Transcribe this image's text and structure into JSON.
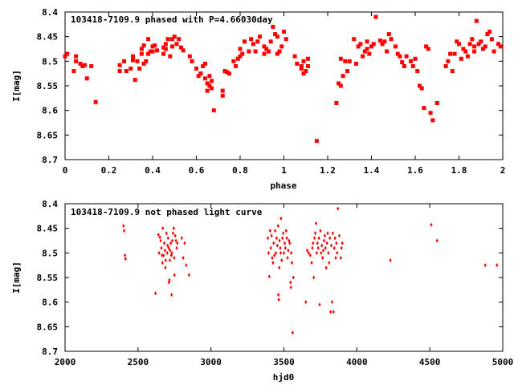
{
  "chart_data": [
    {
      "type": "scatter",
      "title": "103418-7109.9 phased with P=4.66030day",
      "xlabel": "phase",
      "ylabel": "I[mag]",
      "xlim": [
        0,
        2
      ],
      "ylim": [
        8.7,
        8.4
      ],
      "y_inverted": true,
      "xticks": [
        "0",
        "0.2",
        "0.4",
        "0.6",
        "0.8",
        "1",
        "1.2",
        "1.4",
        "1.6",
        "1.8",
        "2"
      ],
      "yticks": [
        "8.4",
        "8.45",
        "8.5",
        "8.55",
        "8.6",
        "8.65",
        "8.7"
      ],
      "marker_color": "#ff0000",
      "grid": false,
      "points": [
        [
          0.0,
          8.49
        ],
        [
          0.01,
          8.485
        ],
        [
          0.04,
          8.52
        ],
        [
          0.05,
          8.5
        ],
        [
          0.05,
          8.49
        ],
        [
          0.07,
          8.505
        ],
        [
          0.08,
          8.51
        ],
        [
          0.09,
          8.508
        ],
        [
          0.1,
          8.535
        ],
        [
          0.12,
          8.51
        ],
        [
          0.14,
          8.583
        ],
        [
          0.25,
          8.52
        ],
        [
          0.25,
          8.508
        ],
        [
          0.27,
          8.5
        ],
        [
          0.28,
          8.52
        ],
        [
          0.3,
          8.515
        ],
        [
          0.31,
          8.49
        ],
        [
          0.31,
          8.498
        ],
        [
          0.32,
          8.538
        ],
        [
          0.33,
          8.5
        ],
        [
          0.34,
          8.515
        ],
        [
          0.35,
          8.485
        ],
        [
          0.35,
          8.475
        ],
        [
          0.36,
          8.468
        ],
        [
          0.36,
          8.505
        ],
        [
          0.37,
          8.5
        ],
        [
          0.38,
          8.485
        ],
        [
          0.38,
          8.455
        ],
        [
          0.39,
          8.48
        ],
        [
          0.4,
          8.48
        ],
        [
          0.4,
          8.47
        ],
        [
          0.41,
          8.468
        ],
        [
          0.42,
          8.478
        ],
        [
          0.45,
          8.485
        ],
        [
          0.45,
          8.472
        ],
        [
          0.46,
          8.465
        ],
        [
          0.46,
          8.475
        ],
        [
          0.47,
          8.455
        ],
        [
          0.48,
          8.49
        ],
        [
          0.49,
          8.47
        ],
        [
          0.49,
          8.455
        ],
        [
          0.5,
          8.45
        ],
        [
          0.51,
          8.465
        ],
        [
          0.52,
          8.455
        ],
        [
          0.53,
          8.472
        ],
        [
          0.54,
          8.478
        ],
        [
          0.57,
          8.49
        ],
        [
          0.58,
          8.5
        ],
        [
          0.6,
          8.515
        ],
        [
          0.61,
          8.53
        ],
        [
          0.62,
          8.525
        ],
        [
          0.63,
          8.51
        ],
        [
          0.64,
          8.505
        ],
        [
          0.64,
          8.535
        ],
        [
          0.65,
          8.545
        ],
        [
          0.65,
          8.56
        ],
        [
          0.66,
          8.55
        ],
        [
          0.66,
          8.53
        ],
        [
          0.67,
          8.54
        ],
        [
          0.67,
          8.555
        ],
        [
          0.68,
          8.6
        ],
        [
          0.72,
          8.56
        ],
        [
          0.72,
          8.57
        ],
        [
          0.73,
          8.52
        ],
        [
          0.74,
          8.522
        ],
        [
          0.75,
          8.525
        ],
        [
          0.77,
          8.5
        ],
        [
          0.78,
          8.51
        ],
        [
          0.79,
          8.495
        ],
        [
          0.8,
          8.49
        ],
        [
          0.8,
          8.475
        ],
        [
          0.81,
          8.485
        ],
        [
          0.82,
          8.46
        ],
        [
          0.84,
          8.48
        ],
        [
          0.85,
          8.455
        ],
        [
          0.86,
          8.465
        ],
        [
          0.87,
          8.48
        ],
        [
          0.88,
          8.46
        ],
        [
          0.89,
          8.45
        ],
        [
          0.91,
          8.47
        ],
        [
          0.91,
          8.485
        ],
        [
          0.92,
          8.475
        ],
        [
          0.93,
          8.48
        ],
        [
          0.94,
          8.46
        ],
        [
          0.95,
          8.43
        ],
        [
          0.96,
          8.445
        ],
        [
          0.97,
          8.45
        ],
        [
          0.97,
          8.485
        ],
        [
          0.98,
          8.48
        ],
        [
          0.99,
          8.47
        ],
        [
          1.0,
          8.44
        ],
        [
          1.01,
          8.455
        ],
        [
          1.05,
          8.49
        ],
        [
          1.06,
          8.505
        ],
        [
          1.08,
          8.51
        ],
        [
          1.08,
          8.515
        ],
        [
          1.09,
          8.525
        ],
        [
          1.09,
          8.5
        ],
        [
          1.1,
          8.52
        ],
        [
          1.11,
          8.495
        ],
        [
          1.11,
          8.51
        ],
        [
          1.15,
          8.662
        ],
        [
          1.24,
          8.585
        ],
        [
          1.25,
          8.545
        ],
        [
          1.26,
          8.55
        ],
        [
          1.26,
          8.495
        ],
        [
          1.27,
          8.53
        ],
        [
          1.28,
          8.5
        ],
        [
          1.29,
          8.52
        ],
        [
          1.3,
          8.5
        ],
        [
          1.32,
          8.455
        ],
        [
          1.33,
          8.505
        ],
        [
          1.34,
          8.47
        ],
        [
          1.35,
          8.465
        ],
        [
          1.36,
          8.49
        ],
        [
          1.37,
          8.48
        ],
        [
          1.38,
          8.46
        ],
        [
          1.38,
          8.475
        ],
        [
          1.39,
          8.485
        ],
        [
          1.4,
          8.47
        ],
        [
          1.41,
          8.465
        ],
        [
          1.42,
          8.41
        ],
        [
          1.44,
          8.458
        ],
        [
          1.45,
          8.465
        ],
        [
          1.46,
          8.46
        ],
        [
          1.47,
          8.48
        ],
        [
          1.48,
          8.445
        ],
        [
          1.49,
          8.455
        ],
        [
          1.51,
          8.47
        ],
        [
          1.52,
          8.485
        ],
        [
          1.53,
          8.49
        ],
        [
          1.54,
          8.502
        ],
        [
          1.55,
          8.51
        ],
        [
          1.56,
          8.49
        ],
        [
          1.58,
          8.5
        ],
        [
          1.59,
          8.51
        ],
        [
          1.6,
          8.495
        ],
        [
          1.61,
          8.52
        ],
        [
          1.62,
          8.55
        ],
        [
          1.63,
          8.555
        ],
        [
          1.64,
          8.595
        ],
        [
          1.65,
          8.47
        ],
        [
          1.66,
          8.475
        ],
        [
          1.67,
          8.605
        ],
        [
          1.68,
          8.62
        ],
        [
          1.7,
          8.585
        ],
        [
          1.74,
          8.51
        ],
        [
          1.75,
          8.5
        ],
        [
          1.76,
          8.485
        ],
        [
          1.77,
          8.52
        ],
        [
          1.78,
          8.485
        ],
        [
          1.79,
          8.46
        ],
        [
          1.8,
          8.465
        ],
        [
          1.81,
          8.495
        ],
        [
          1.82,
          8.475
        ],
        [
          1.83,
          8.48
        ],
        [
          1.84,
          8.49
        ],
        [
          1.85,
          8.465
        ],
        [
          1.86,
          8.455
        ],
        [
          1.87,
          8.47
        ],
        [
          1.87,
          8.48
        ],
        [
          1.88,
          8.418
        ],
        [
          1.89,
          8.465
        ],
        [
          1.9,
          8.46
        ],
        [
          1.91,
          8.475
        ],
        [
          1.92,
          8.47
        ],
        [
          1.93,
          8.445
        ],
        [
          1.94,
          8.44
        ],
        [
          1.95,
          8.455
        ],
        [
          1.96,
          8.48
        ],
        [
          1.98,
          8.465
        ],
        [
          1.99,
          8.47
        ]
      ]
    },
    {
      "type": "scatter",
      "title": "103418-7109.9 not phased light curve",
      "xlabel": "hjd0",
      "ylabel": "I[mag]",
      "xlim": [
        2000,
        5000
      ],
      "ylim": [
        8.7,
        8.4
      ],
      "y_inverted": true,
      "xticks": [
        "2000",
        "2500",
        "3000",
        "3500",
        "4000",
        "4500",
        "5000"
      ],
      "yticks": [
        "8.4",
        "8.45",
        "8.5",
        "8.55",
        "8.6",
        "8.65",
        "8.7"
      ],
      "marker_color": "#ff0000",
      "grid": false,
      "points": [
        [
          2400,
          8.445
        ],
        [
          2405,
          8.455
        ],
        [
          2410,
          8.505
        ],
        [
          2415,
          8.512
        ],
        [
          2620,
          8.582
        ],
        [
          2640,
          8.463
        ],
        [
          2645,
          8.5
        ],
        [
          2650,
          8.468
        ],
        [
          2655,
          8.475
        ],
        [
          2660,
          8.49
        ],
        [
          2665,
          8.505
        ],
        [
          2668,
          8.52
        ],
        [
          2670,
          8.45
        ],
        [
          2675,
          8.505
        ],
        [
          2680,
          8.48
        ],
        [
          2685,
          8.495
        ],
        [
          2688,
          8.53
        ],
        [
          2690,
          8.515
        ],
        [
          2695,
          8.46
        ],
        [
          2700,
          8.5
        ],
        [
          2703,
          8.485
        ],
        [
          2706,
          8.47
        ],
        [
          2710,
          8.49
        ],
        [
          2712,
          8.56
        ],
        [
          2715,
          8.555
        ],
        [
          2718,
          8.515
        ],
        [
          2720,
          8.495
        ],
        [
          2725,
          8.48
        ],
        [
          2728,
          8.505
        ],
        [
          2730,
          8.585
        ],
        [
          2732,
          8.5
        ],
        [
          2735,
          8.475
        ],
        [
          2740,
          8.46
        ],
        [
          2745,
          8.45
        ],
        [
          2748,
          8.51
        ],
        [
          2750,
          8.545
        ],
        [
          2755,
          8.465
        ],
        [
          2760,
          8.475
        ],
        [
          2765,
          8.49
        ],
        [
          2770,
          8.48
        ],
        [
          2800,
          8.47
        ],
        [
          2810,
          8.51
        ],
        [
          2820,
          8.48
        ],
        [
          2830,
          8.525
        ],
        [
          2850,
          8.545
        ],
        [
          3390,
          8.47
        ],
        [
          3395,
          8.5
        ],
        [
          3400,
          8.548
        ],
        [
          3405,
          8.455
        ],
        [
          3410,
          8.49
        ],
        [
          3415,
          8.465
        ],
        [
          3420,
          8.51
        ],
        [
          3425,
          8.52
        ],
        [
          3430,
          8.48
        ],
        [
          3435,
          8.505
        ],
        [
          3440,
          8.455
        ],
        [
          3445,
          8.5
        ],
        [
          3450,
          8.47
        ],
        [
          3455,
          8.485
        ],
        [
          3460,
          8.445
        ],
        [
          3462,
          8.585
        ],
        [
          3465,
          8.595
        ],
        [
          3468,
          8.53
        ],
        [
          3470,
          8.475
        ],
        [
          3475,
          8.49
        ],
        [
          3478,
          8.5
        ],
        [
          3480,
          8.43
        ],
        [
          3485,
          8.515
        ],
        [
          3490,
          8.47
        ],
        [
          3495,
          8.46
        ],
        [
          3500,
          8.5
        ],
        [
          3505,
          8.48
        ],
        [
          3510,
          8.49
        ],
        [
          3515,
          8.455
        ],
        [
          3520,
          8.47
        ],
        [
          3525,
          8.51
        ],
        [
          3530,
          8.495
        ],
        [
          3535,
          8.475
        ],
        [
          3540,
          8.48
        ],
        [
          3545,
          8.56
        ],
        [
          3548,
          8.57
        ],
        [
          3550,
          8.5
        ],
        [
          3555,
          8.52
        ],
        [
          3560,
          8.662
        ],
        [
          3565,
          8.55
        ],
        [
          3650,
          8.6
        ],
        [
          3660,
          8.495
        ],
        [
          3670,
          8.5
        ],
        [
          3680,
          8.505
        ],
        [
          3690,
          8.52
        ],
        [
          3695,
          8.49
        ],
        [
          3700,
          8.48
        ],
        [
          3705,
          8.55
        ],
        [
          3710,
          8.47
        ],
        [
          3715,
          8.46
        ],
        [
          3720,
          8.44
        ],
        [
          3725,
          8.5
        ],
        [
          3730,
          8.48
        ],
        [
          3735,
          8.49
        ],
        [
          3740,
          8.47
        ],
        [
          3745,
          8.605
        ],
        [
          3750,
          8.455
        ],
        [
          3755,
          8.5
        ],
        [
          3760,
          8.485
        ],
        [
          3765,
          8.51
        ],
        [
          3770,
          8.495
        ],
        [
          3775,
          8.475
        ],
        [
          3780,
          8.465
        ],
        [
          3785,
          8.49
        ],
        [
          3790,
          8.53
        ],
        [
          3795,
          8.48
        ],
        [
          3800,
          8.46
        ],
        [
          3805,
          8.5
        ],
        [
          3810,
          8.52
        ],
        [
          3815,
          8.47
        ],
        [
          3820,
          8.62
        ],
        [
          3825,
          8.485
        ],
        [
          3830,
          8.6
        ],
        [
          3835,
          8.46
        ],
        [
          3840,
          8.62
        ],
        [
          3845,
          8.49
        ],
        [
          3850,
          8.47
        ],
        [
          3855,
          8.51
        ],
        [
          3860,
          8.48
        ],
        [
          3865,
          8.5
        ],
        [
          3870,
          8.41
        ],
        [
          3880,
          8.465
        ],
        [
          3890,
          8.51
        ],
        [
          3895,
          8.49
        ],
        [
          3900,
          8.48
        ],
        [
          4230,
          8.515
        ],
        [
          4510,
          8.443
        ],
        [
          4550,
          8.475
        ],
        [
          4880,
          8.525
        ],
        [
          4960,
          8.525
        ]
      ]
    }
  ]
}
